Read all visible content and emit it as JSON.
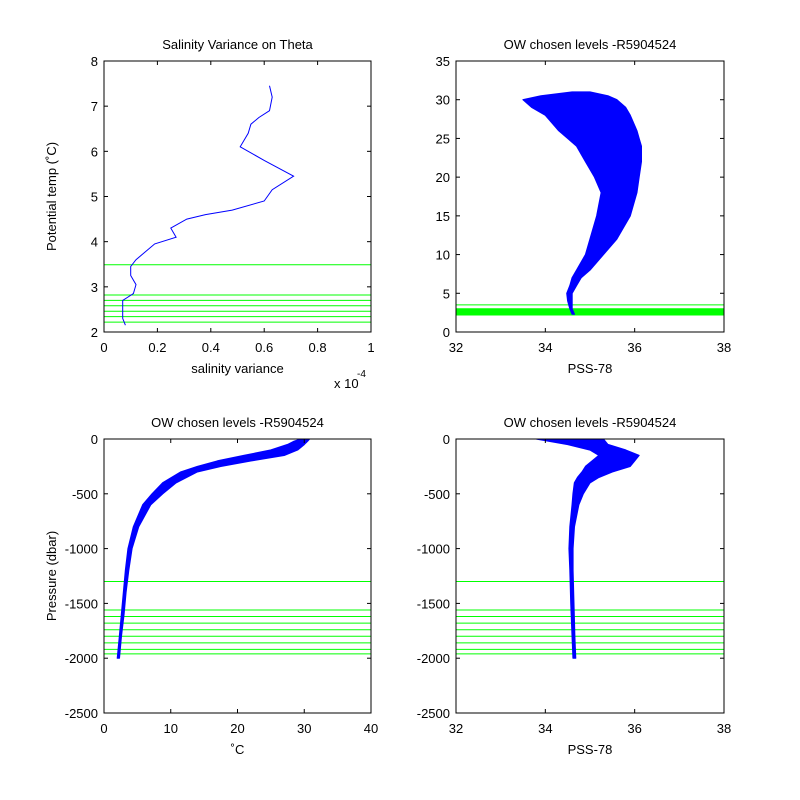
{
  "chart_data": [
    {
      "type": "line",
      "title": "Salinity Variance on Theta",
      "xlabel": "salinity variance",
      "ylabel": "Potential temp (˚C)",
      "x_exponent_label": "x 10",
      "x_exponent": "-4",
      "xlim": [
        0,
        1
      ],
      "ylim": [
        2,
        8
      ],
      "xticks": [
        "0",
        "0.2",
        "0.4",
        "0.6",
        "0.8",
        "1"
      ],
      "yticks": [
        "2",
        "3",
        "4",
        "5",
        "6",
        "7",
        "8"
      ],
      "grid": false,
      "line_color": "#0000ff",
      "level_color": "#00ff00",
      "series": [
        {
          "x": [
            0.08,
            0.07,
            0.07,
            0.07,
            0.11,
            0.12,
            0.1,
            0.1,
            0.12,
            0.19,
            0.27,
            0.25,
            0.31,
            0.38,
            0.48,
            0.6,
            0.63,
            0.71,
            0.6,
            0.51,
            0.54,
            0.55,
            0.58,
            0.62,
            0.63,
            0.62
          ],
          "y": [
            2.15,
            2.3,
            2.5,
            2.7,
            2.85,
            3.05,
            3.25,
            3.45,
            3.6,
            3.95,
            4.1,
            4.3,
            4.5,
            4.6,
            4.7,
            4.9,
            5.15,
            5.45,
            5.8,
            6.1,
            6.4,
            6.6,
            6.75,
            6.9,
            7.2,
            7.45
          ]
        }
      ],
      "horizontal_levels": [
        2.22,
        2.34,
        2.46,
        2.58,
        2.7,
        2.82,
        3.49
      ]
    },
    {
      "type": "line",
      "title": "OW chosen levels -R5904524",
      "xlabel": "PSS-78",
      "ylabel": "",
      "xlim": [
        32,
        38
      ],
      "ylim": [
        0,
        35
      ],
      "xticks": [
        "32",
        "34",
        "36",
        "38"
      ],
      "yticks": [
        "0",
        "5",
        "10",
        "15",
        "20",
        "25",
        "30",
        "35"
      ],
      "grid": false,
      "line_color": "#0000ff",
      "level_color": "#00ff00",
      "horizontal_levels": [
        2.2,
        2.4,
        2.6,
        2.8,
        3.0,
        3.5
      ],
      "envelope": {
        "y": [
          2.3,
          3,
          4,
          5,
          6,
          7,
          8,
          10,
          12,
          15,
          18,
          20,
          22,
          24,
          25,
          26,
          28,
          29,
          30,
          30.5,
          31
        ],
        "x_min": [
          34.6,
          34.55,
          34.5,
          34.48,
          34.55,
          34.6,
          34.7,
          34.9,
          35.0,
          35.15,
          35.25,
          35.1,
          34.9,
          34.7,
          34.5,
          34.3,
          34.0,
          33.7,
          33.5,
          33.9,
          34.6
        ],
        "x_max": [
          34.65,
          34.6,
          34.6,
          34.6,
          34.7,
          34.8,
          35.0,
          35.3,
          35.6,
          35.9,
          36.05,
          36.1,
          36.15,
          36.15,
          36.1,
          36.05,
          35.9,
          35.8,
          35.6,
          35.4,
          35.0
        ]
      }
    },
    {
      "type": "line",
      "title": "OW chosen levels -R5904524",
      "xlabel": "˚C",
      "ylabel": "Pressure (dbar)",
      "xlim": [
        0,
        40
      ],
      "ylim": [
        -2500,
        0
      ],
      "xticks": [
        "0",
        "10",
        "20",
        "30",
        "40"
      ],
      "yticks": [
        "-2500",
        "-2000",
        "-1500",
        "-1000",
        "-500",
        "0"
      ],
      "grid": false,
      "line_color": "#0000ff",
      "level_color": "#00ff00",
      "horizontal_levels": [
        -1300,
        -1560,
        -1620,
        -1680,
        -1740,
        -1800,
        -1860,
        -1920,
        -1960
      ],
      "envelope": {
        "y": [
          -2000,
          -1800,
          -1600,
          -1400,
          -1200,
          -1000,
          -800,
          -600,
          -500,
          -400,
          -300,
          -250,
          -200,
          -150,
          -100,
          -50,
          -20,
          0
        ],
        "x_min": [
          2.0,
          2.3,
          2.6,
          2.9,
          3.2,
          3.6,
          4.4,
          5.8,
          7.2,
          8.8,
          11.5,
          14.0,
          17.0,
          21.0,
          25.0,
          27.5,
          28.5,
          29.5
        ],
        "x_max": [
          2.3,
          2.6,
          3.0,
          3.3,
          3.7,
          4.2,
          5.2,
          7.0,
          8.8,
          10.8,
          14.0,
          17.5,
          22.0,
          27.0,
          29.0,
          30.0,
          30.5,
          30.8
        ]
      }
    },
    {
      "type": "line",
      "title": "OW chosen levels -R5904524",
      "xlabel": "PSS-78",
      "ylabel": "",
      "xlim": [
        32,
        38
      ],
      "ylim": [
        -2500,
        0
      ],
      "xticks": [
        "32",
        "34",
        "36",
        "38"
      ],
      "yticks": [
        "-2500",
        "-2000",
        "-1500",
        "-1000",
        "-500",
        "0"
      ],
      "grid": false,
      "line_color": "#0000ff",
      "level_color": "#00ff00",
      "horizontal_levels": [
        -1300,
        -1560,
        -1620,
        -1680,
        -1740,
        -1800,
        -1860,
        -1920,
        -1960
      ],
      "envelope": {
        "y": [
          -2000,
          -1800,
          -1500,
          -1200,
          -1000,
          -800,
          -600,
          -500,
          -400,
          -350,
          -300,
          -250,
          -200,
          -150,
          -100,
          -50,
          0
        ],
        "x_min": [
          34.62,
          34.6,
          34.57,
          34.55,
          34.53,
          34.55,
          34.6,
          34.62,
          34.65,
          34.72,
          34.82,
          34.9,
          35.05,
          35.2,
          35.0,
          34.5,
          33.8
        ],
        "x_max": [
          34.68,
          34.66,
          34.64,
          34.62,
          34.62,
          34.65,
          34.75,
          34.85,
          35.0,
          35.2,
          35.5,
          35.9,
          36.0,
          36.1,
          35.8,
          35.4,
          35.3
        ]
      }
    }
  ]
}
